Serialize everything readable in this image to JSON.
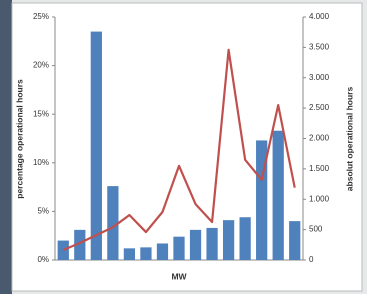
{
  "chart_data": {
    "type": "bar-line",
    "xlabel": "MW",
    "ylabel": "percentage operational hours",
    "y2label": "absolut operational hours",
    "categories": [
      null,
      null,
      null,
      null,
      null,
      null,
      null,
      null,
      null,
      null,
      null,
      null,
      null,
      null,
      null
    ],
    "series": [
      {
        "type": "bar",
        "color": "#4f81bd",
        "values": [
          2.0,
          3.1,
          23.5,
          7.6,
          1.2,
          1.3,
          1.7,
          2.4,
          3.1,
          3.3,
          4.1,
          4.4,
          12.3,
          13.3,
          4.0
        ]
      },
      {
        "type": "line",
        "axis": "y2",
        "color": "#c0504d",
        "values": [
          165,
          280,
          410,
          540,
          740,
          460,
          790,
          1550,
          920,
          625,
          3460,
          1650,
          1320,
          2550,
          1190
        ]
      }
    ],
    "ylim": [
      0,
      25
    ],
    "yticks": [
      {
        "value": 0,
        "label": "0%"
      },
      {
        "value": 5,
        "label": "5%"
      },
      {
        "value": 10,
        "label": "10%"
      },
      {
        "value": 15,
        "label": "15%"
      },
      {
        "value": 20,
        "label": "20%"
      },
      {
        "value": 25,
        "label": "25%"
      }
    ],
    "y2lim": [
      0,
      4000
    ],
    "y2ticks": [
      0,
      500,
      {
        "value": 1000,
        "label": "1.000"
      },
      {
        "value": 1500,
        "label": "1.500"
      },
      {
        "value": 2000,
        "label": "2.000"
      },
      {
        "value": 2500,
        "label": "2.500"
      },
      {
        "value": 3000,
        "label": "3.000"
      },
      {
        "value": 3500,
        "label": "3.500"
      },
      {
        "value": 4000,
        "label": "4.000"
      }
    ],
    "grid": false
  }
}
